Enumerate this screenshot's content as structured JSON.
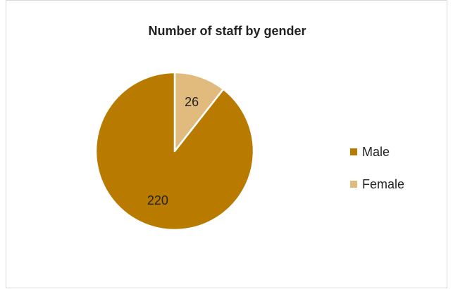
{
  "chart_data": {
    "type": "pie",
    "title": "Number of staff by gender",
    "categories": [
      "Male",
      "Female"
    ],
    "values": [
      220,
      26
    ],
    "colors": [
      "#b87b00",
      "#e0bb7d"
    ],
    "legend_position": "right",
    "start_angle_deg": 0,
    "direction": "clockwise",
    "slice_border_color": "#ffffff"
  }
}
